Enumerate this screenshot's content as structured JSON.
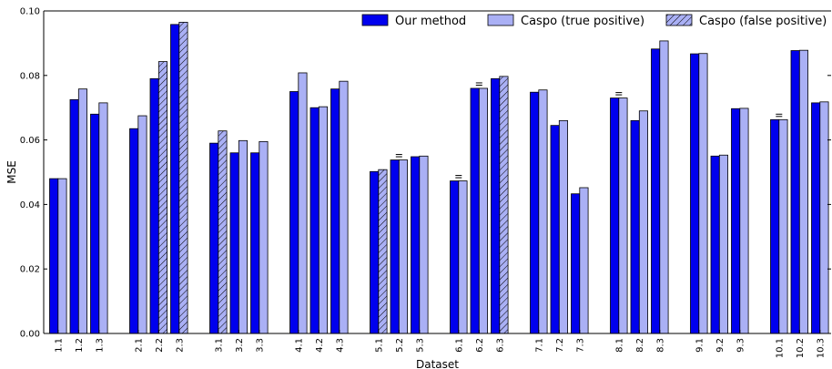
{
  "chart_data": {
    "type": "bar",
    "xlabel": "Dataset",
    "ylabel": "MSE",
    "ylim": [
      0,
      0.1
    ],
    "yticks": [
      "0.00",
      "0.02",
      "0.04",
      "0.06",
      "0.08",
      "0.10"
    ],
    "grid": false,
    "legend_position": "top-right",
    "legend": [
      {
        "label": "Our method",
        "color": "#0000ee",
        "pattern": "solid"
      },
      {
        "label": "Caspo (true positive)",
        "color": "#aab0f5",
        "pattern": "solid"
      },
      {
        "label": "Caspo (false positive)",
        "color": "#aab0f5",
        "pattern": "hatched"
      }
    ],
    "categories": [
      "1.1",
      "1.2",
      "1.3",
      "2.1",
      "2.2",
      "2.3",
      "3.1",
      "3.2",
      "3.3",
      "4.1",
      "4.2",
      "4.3",
      "5.1",
      "5.2",
      "5.3",
      "6.1",
      "6.2",
      "6.3",
      "7.1",
      "7.2",
      "7.3",
      "8.1",
      "8.2",
      "8.3",
      "9.1",
      "9.2",
      "9.3",
      "10.1",
      "10.2",
      "10.3"
    ],
    "series": [
      {
        "name": "Our method",
        "values": [
          0.048,
          0.0725,
          0.068,
          0.0635,
          0.079,
          0.0958,
          0.059,
          0.056,
          0.056,
          0.075,
          0.07,
          0.0758,
          0.0502,
          0.0538,
          0.0548,
          0.0473,
          0.076,
          0.079,
          0.0748,
          0.0645,
          0.0433,
          0.073,
          0.066,
          0.0882,
          0.0867,
          0.055,
          0.0697,
          0.0663,
          0.0877,
          0.0715
        ]
      },
      {
        "name": "Caspo",
        "values": [
          0.048,
          0.0758,
          0.0715,
          0.0675,
          0.0843,
          0.0965,
          0.0628,
          0.0598,
          0.0595,
          0.0808,
          0.0703,
          0.0782,
          0.0508,
          0.0538,
          0.055,
          0.0473,
          0.076,
          0.0797,
          0.0755,
          0.066,
          0.0452,
          0.073,
          0.069,
          0.0907,
          0.0868,
          0.0553,
          0.0698,
          0.0663,
          0.0878,
          0.0718
        ],
        "false_positive": [
          false,
          false,
          false,
          false,
          true,
          true,
          true,
          false,
          false,
          false,
          false,
          false,
          true,
          false,
          false,
          false,
          false,
          true,
          false,
          false,
          false,
          false,
          false,
          false,
          false,
          false,
          false,
          false,
          false,
          false
        ]
      }
    ],
    "equal_markers": [
      "5.2",
      "6.1",
      "6.2",
      "8.1",
      "10.1"
    ]
  }
}
